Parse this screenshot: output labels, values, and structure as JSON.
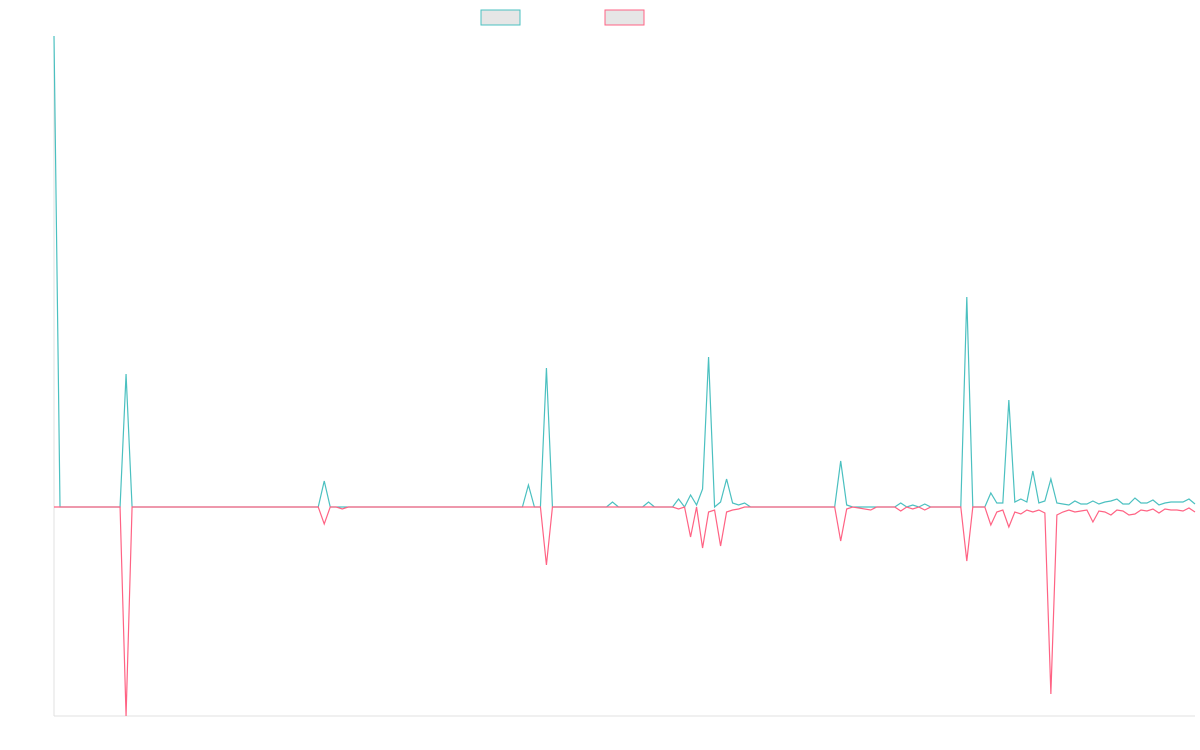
{
  "chart_data": {
    "type": "line",
    "x": [
      0,
      1,
      11,
      12,
      13,
      44,
      45,
      46,
      47,
      48,
      49,
      78,
      79,
      80,
      81,
      82,
      83,
      92,
      93,
      94,
      98,
      99,
      100,
      103,
      104,
      105,
      106,
      107,
      108,
      109,
      110,
      111,
      112,
      113,
      114,
      115,
      116,
      130,
      131,
      132,
      133,
      136,
      137,
      140,
      141,
      142,
      143,
      144,
      145,
      146,
      147,
      151,
      152,
      153,
      155,
      156,
      157,
      158,
      159,
      160,
      161,
      162,
      163,
      164,
      165,
      166,
      167,
      168,
      169,
      170,
      171,
      172,
      173,
      174,
      175,
      176,
      177,
      178,
      179,
      180,
      181,
      182,
      183,
      184,
      185,
      186,
      187,
      188,
      189,
      190
    ],
    "xlim": [
      0,
      190
    ],
    "ylim": [
      -209,
      471
    ],
    "series": [
      {
        "color": "#4bc0c0",
        "values": [
          471,
          0,
          0,
          133,
          0,
          0,
          26,
          0,
          0,
          0,
          0,
          0,
          22,
          0,
          0,
          139,
          0,
          0,
          5,
          0,
          0,
          5,
          0,
          0,
          8,
          0,
          12,
          2,
          18,
          150,
          0,
          5,
          28,
          4,
          2,
          4,
          0,
          0,
          46,
          2,
          0,
          0,
          0,
          0,
          4,
          0,
          2,
          0,
          3,
          0,
          0,
          0,
          210,
          0,
          0,
          14,
          4,
          4,
          107,
          5,
          8,
          5,
          36,
          4,
          6,
          28,
          4,
          3,
          2,
          6,
          3,
          3,
          6,
          3,
          5,
          6,
          8,
          3,
          3,
          9,
          4,
          4,
          7,
          2,
          4,
          5,
          5,
          5,
          8,
          3
        ]
      },
      {
        "color": "#ff6384",
        "values": [
          0,
          0,
          0,
          -209,
          0,
          0,
          -17,
          0,
          0,
          -2,
          0,
          0,
          0,
          0,
          0,
          -58,
          0,
          0,
          0,
          0,
          0,
          0,
          0,
          0,
          -2,
          0,
          -30,
          0,
          -41,
          -5,
          -3,
          -39,
          -5,
          -3,
          -2,
          0,
          0,
          0,
          -34,
          -2,
          0,
          -3,
          0,
          0,
          -4,
          0,
          -2,
          0,
          -3,
          0,
          0,
          0,
          -54,
          0,
          0,
          -18,
          -5,
          -3,
          -20,
          -5,
          -7,
          -3,
          -5,
          -3,
          -6,
          -187,
          -8,
          -5,
          -3,
          -5,
          -4,
          -3,
          -15,
          -4,
          -5,
          -8,
          -3,
          -4,
          -8,
          -7,
          -3,
          -4,
          -2,
          -6,
          -2,
          -3,
          -3,
          -4,
          -1,
          -5
        ]
      }
    ]
  }
}
